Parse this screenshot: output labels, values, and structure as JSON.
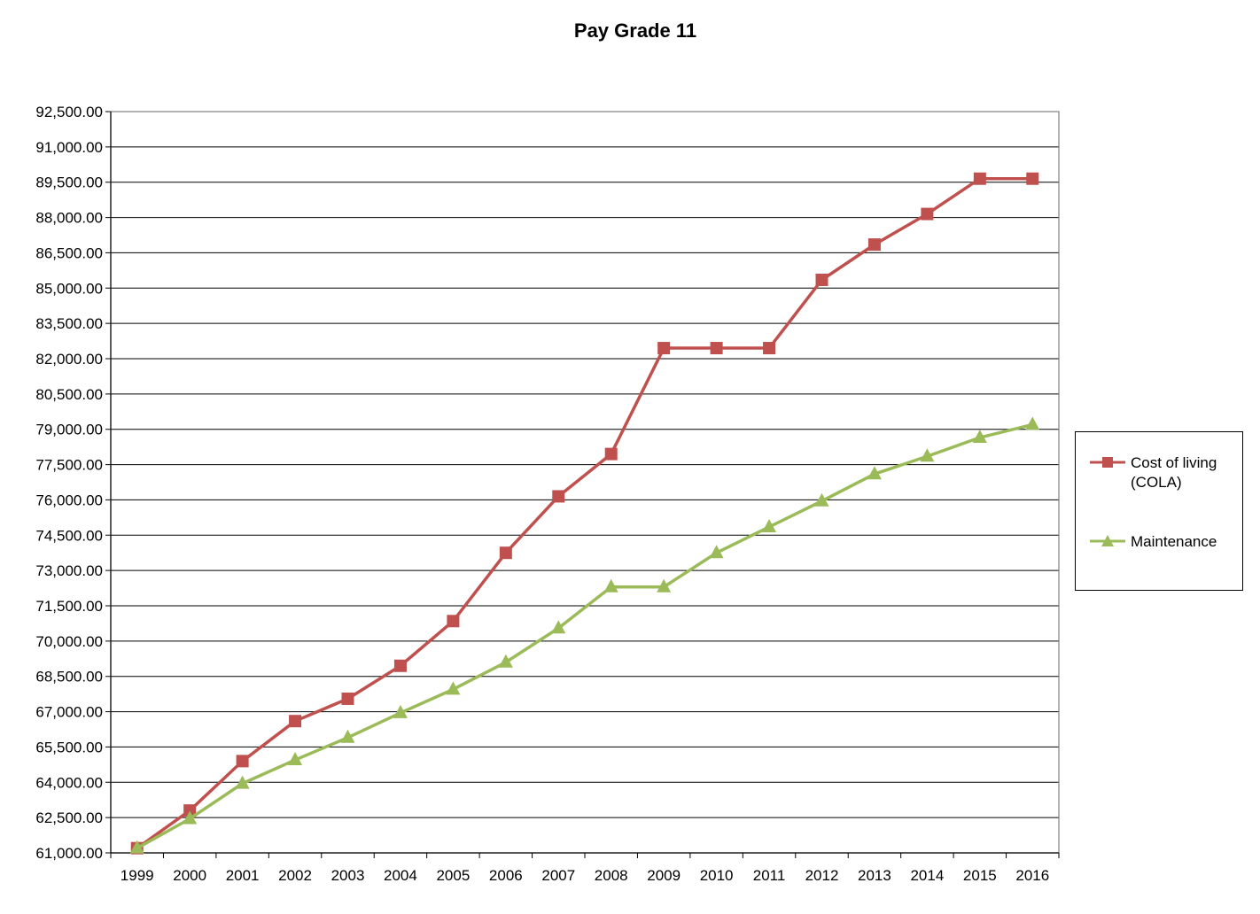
{
  "chart_data": {
    "type": "line",
    "title": "Pay Grade 11",
    "xlabel": "",
    "ylabel": "",
    "categories": [
      "1999",
      "2000",
      "2001",
      "2002",
      "2003",
      "2004",
      "2005",
      "2006",
      "2007",
      "2008",
      "2009",
      "2010",
      "2011",
      "2012",
      "2013",
      "2014",
      "2015",
      "2016"
    ],
    "ylim": [
      61000,
      92500
    ],
    "ytick_step": 1500,
    "ytick_labels": [
      "61,000.00",
      "62,500.00",
      "64,000.00",
      "65,500.00",
      "67,000.00",
      "68,500.00",
      "70,000.00",
      "71,500.00",
      "73,000.00",
      "74,500.00",
      "76,000.00",
      "77,500.00",
      "79,000.00",
      "80,500.00",
      "82,000.00",
      "83,500.00",
      "85,000.00",
      "86,500.00",
      "88,000.00",
      "89,500.00",
      "91,000.00",
      "92,500.00"
    ],
    "grid": true,
    "legend_position": "right",
    "series": [
      {
        "name": "Cost of living (COLA)",
        "color": "#c0504d",
        "marker": "square",
        "values": [
          61200,
          62800,
          64900,
          66600,
          67550,
          68950,
          70850,
          73750,
          76150,
          77950,
          82450,
          82450,
          82450,
          85350,
          86850,
          88150,
          89650,
          89650
        ]
      },
      {
        "name": "Maintenance",
        "color": "#9bbb59",
        "marker": "triangle",
        "values": [
          61200,
          62450,
          63950,
          64950,
          65900,
          66950,
          67950,
          69100,
          70550,
          72300,
          72300,
          73750,
          74850,
          75950,
          77100,
          77850,
          78650,
          79200
        ]
      }
    ]
  }
}
